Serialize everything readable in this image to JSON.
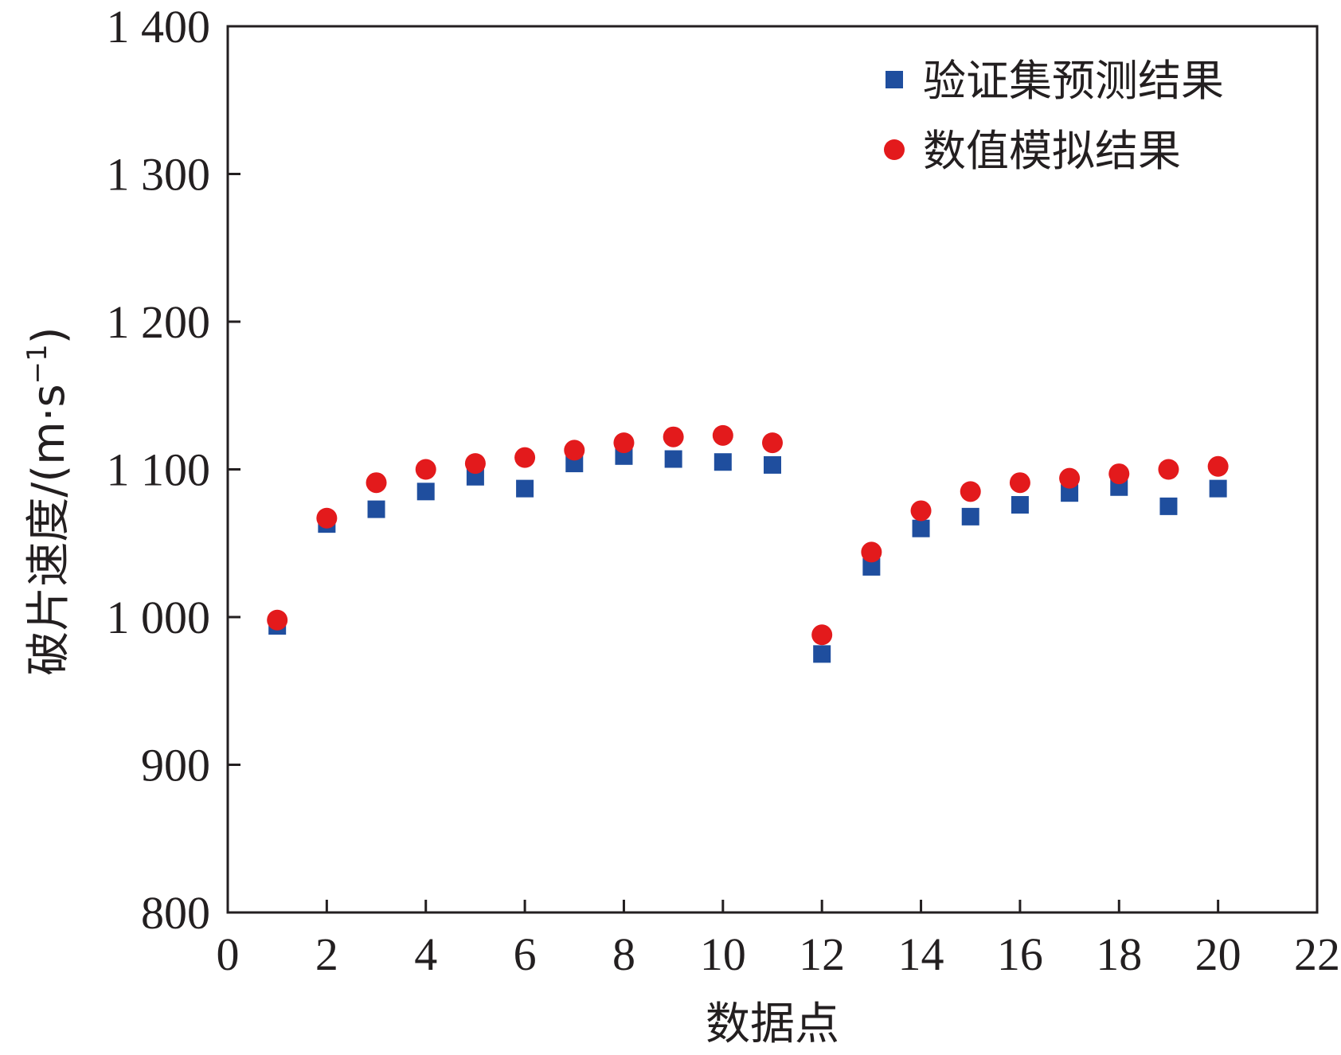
{
  "chart_data": {
    "type": "scatter",
    "title": "",
    "xlabel": "数据点",
    "ylabel": "破片速度/(m·s",
    "ylabel_sup": "−1",
    "ylabel_close": ")",
    "xlim": [
      0,
      22
    ],
    "ylim": [
      800,
      1400
    ],
    "x_ticks": [
      0,
      2,
      4,
      6,
      8,
      10,
      12,
      14,
      16,
      18,
      20,
      22
    ],
    "x_tick_labels": [
      "0",
      "2",
      "4",
      "6",
      "8",
      "10",
      "12",
      "14",
      "16",
      "18",
      "20",
      "22"
    ],
    "y_ticks": [
      800,
      900,
      1000,
      1100,
      1200,
      1300,
      1400
    ],
    "y_tick_labels": [
      "800",
      "900",
      "1 000",
      "1 100",
      "1 200",
      "1 300",
      "1 400"
    ],
    "grid": false,
    "legend_position": "top-right",
    "x": [
      1,
      2,
      3,
      4,
      5,
      6,
      7,
      8,
      9,
      10,
      11,
      12,
      13,
      14,
      15,
      16,
      17,
      18,
      19,
      20
    ],
    "series": [
      {
        "name": "验证集预测结果",
        "marker": "square",
        "color": "#1f4e9e",
        "values": [
          994,
          1063,
          1073,
          1085,
          1095,
          1087,
          1104,
          1109,
          1107,
          1105,
          1103,
          975,
          1034,
          1060,
          1068,
          1076,
          1084,
          1088,
          1075,
          1087
        ]
      },
      {
        "name": "数值模拟结果",
        "marker": "circle",
        "color": "#e31a1c",
        "values": [
          998,
          1067,
          1091,
          1100,
          1104,
          1108,
          1113,
          1118,
          1122,
          1123,
          1118,
          988,
          1044,
          1072,
          1085,
          1091,
          1094,
          1097,
          1100,
          1102
        ]
      }
    ]
  }
}
